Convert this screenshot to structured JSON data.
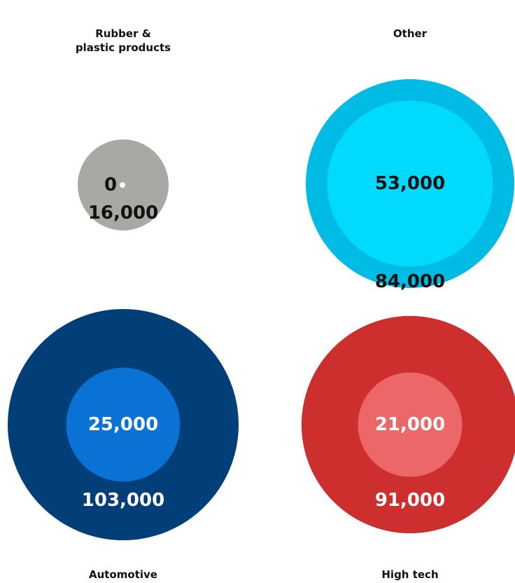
{
  "chart_data": {
    "type": "bubble",
    "unit_note": "",
    "categories": [
      {
        "name": "Rubber &\nplastic products",
        "outer": 16000,
        "inner": 0,
        "outer_label": "16,000",
        "inner_label": "0",
        "colors": {
          "outer": "#a8a9a4",
          "inner": "#ffffff",
          "outer_text": "#111111",
          "inner_text": "#111111"
        }
      },
      {
        "name": "Other",
        "outer": 84000,
        "inner": 53000,
        "outer_label": "84,000",
        "inner_label": "53,000",
        "colors": {
          "outer": "#00bce4",
          "inner": "#00daff",
          "outer_text": "#111111",
          "inner_text": "#111111"
        }
      },
      {
        "name": "Automotive",
        "outer": 103000,
        "inner": 25000,
        "outer_label": "103,000",
        "inner_label": "25,000",
        "colors": {
          "outer": "#023e77",
          "inner": "#0a72d4",
          "outer_text": "#ffffff",
          "inner_text": "#ffffff"
        }
      },
      {
        "name": "High tech",
        "outer": 91000,
        "inner": 21000,
        "outer_label": "91,000",
        "inner_label": "21,000",
        "colors": {
          "outer": "#cd2e2e",
          "inner": "#ec6868",
          "outer_text": "#ffffff",
          "inner_text": "#ffffff"
        }
      }
    ]
  }
}
